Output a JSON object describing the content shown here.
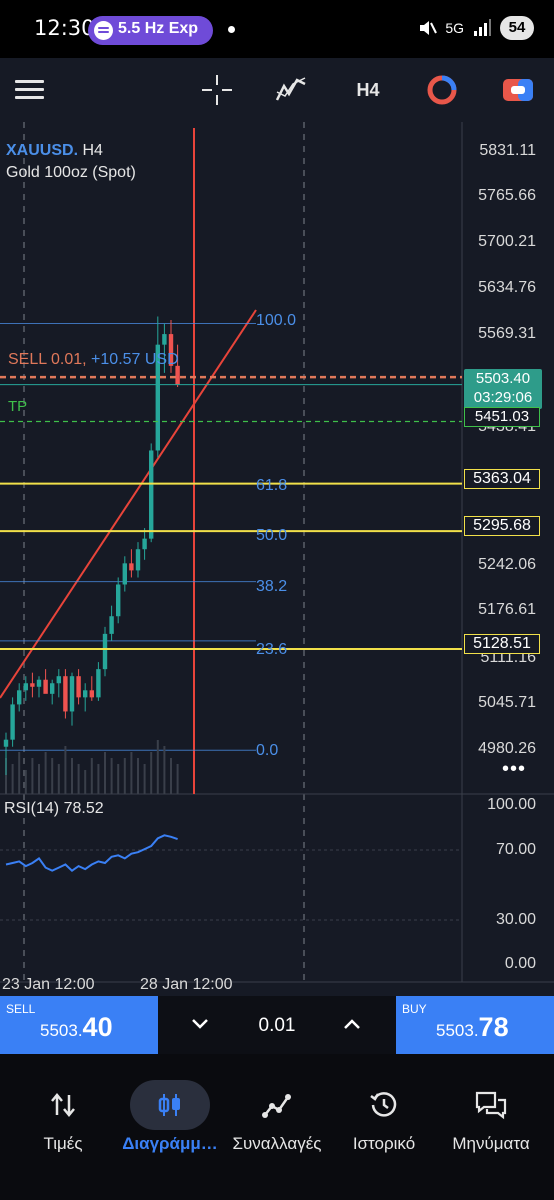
{
  "status_bar": {
    "time": "12:30",
    "media_pill": "5.5 Hz Exp",
    "network": "5G",
    "battery": "54"
  },
  "toolbar": {
    "timeframe": "H4",
    "icons": [
      "menu-icon",
      "crosshair-icon",
      "indicators-icon",
      "timeframe",
      "object-icon",
      "trade-icon"
    ]
  },
  "chart": {
    "symbol": "XAUUSD.",
    "timeframe": "H4",
    "description": "Gold 100oz (Spot)",
    "price_axis": [
      "5831.11",
      "5765.66",
      "5700.21",
      "5634.76",
      "5569.31",
      "5438.41",
      "5176.61",
      "5111.16",
      "5045.71",
      "4980.26",
      "5242.06"
    ],
    "position": {
      "side": "SELL",
      "volume": "0.01,",
      "pnl": "+10.57 USD"
    },
    "tp_label": "TP",
    "fib_levels": [
      "100.0",
      "61.8",
      "50.0",
      "38.2",
      "23.6",
      "0.0"
    ],
    "tags": {
      "level1": "5363.04",
      "level2": "5295.68",
      "level3": "5128.51",
      "current_price": "5503.40",
      "countdown": "03:29:06",
      "tp_price": "5451.03"
    },
    "rsi": {
      "label": "RSI(14) 78.52",
      "axis": [
        "100.00",
        "70.00",
        "30.00",
        "0.00"
      ]
    },
    "dates": [
      "23 Jan 12:00",
      "28 Jan 12:00"
    ],
    "colors": {
      "bull": "#26a69a",
      "bear": "#ef5350",
      "fib": "#4b8fe8",
      "level": "#f1e04a",
      "sell_line": "#e0785a",
      "trend": "#e8443a"
    }
  },
  "chart_data": {
    "type": "candlestick",
    "title": "XAUUSD. H4",
    "ylim": [
      4940,
      5870
    ],
    "candles": [
      {
        "o": 4990,
        "h": 5010,
        "l": 4950,
        "c": 5000
      },
      {
        "o": 5000,
        "h": 5060,
        "l": 4990,
        "c": 5050
      },
      {
        "o": 5050,
        "h": 5080,
        "l": 5040,
        "c": 5070
      },
      {
        "o": 5070,
        "h": 5090,
        "l": 5055,
        "c": 5080
      },
      {
        "o": 5080,
        "h": 5095,
        "l": 5060,
        "c": 5075
      },
      {
        "o": 5075,
        "h": 5090,
        "l": 5060,
        "c": 5085
      },
      {
        "o": 5085,
        "h": 5100,
        "l": 5070,
        "c": 5065
      },
      {
        "o": 5065,
        "h": 5085,
        "l": 5050,
        "c": 5080
      },
      {
        "o": 5080,
        "h": 5100,
        "l": 5060,
        "c": 5090
      },
      {
        "o": 5090,
        "h": 5100,
        "l": 5030,
        "c": 5040
      },
      {
        "o": 5040,
        "h": 5095,
        "l": 5020,
        "c": 5090
      },
      {
        "o": 5090,
        "h": 5100,
        "l": 5050,
        "c": 5060
      },
      {
        "o": 5060,
        "h": 5080,
        "l": 5040,
        "c": 5070
      },
      {
        "o": 5070,
        "h": 5090,
        "l": 5055,
        "c": 5060
      },
      {
        "o": 5060,
        "h": 5110,
        "l": 5055,
        "c": 5100
      },
      {
        "o": 5100,
        "h": 5160,
        "l": 5090,
        "c": 5150
      },
      {
        "o": 5150,
        "h": 5190,
        "l": 5140,
        "c": 5175
      },
      {
        "o": 5175,
        "h": 5230,
        "l": 5165,
        "c": 5220
      },
      {
        "o": 5220,
        "h": 5260,
        "l": 5210,
        "c": 5250
      },
      {
        "o": 5250,
        "h": 5270,
        "l": 5230,
        "c": 5240
      },
      {
        "o": 5240,
        "h": 5280,
        "l": 5230,
        "c": 5270
      },
      {
        "o": 5270,
        "h": 5300,
        "l": 5255,
        "c": 5285
      },
      {
        "o": 5285,
        "h": 5420,
        "l": 5280,
        "c": 5410
      },
      {
        "o": 5410,
        "h": 5600,
        "l": 5400,
        "c": 5560
      },
      {
        "o": 5560,
        "h": 5590,
        "l": 5520,
        "c": 5575
      },
      {
        "o": 5575,
        "h": 5595,
        "l": 5520,
        "c": 5530
      },
      {
        "o": 5530,
        "h": 5560,
        "l": 5500,
        "c": 5503.4
      }
    ],
    "volume": [
      6,
      5,
      7,
      4,
      6,
      5,
      7,
      6,
      5,
      8,
      6,
      5,
      4,
      6,
      5,
      7,
      6,
      5,
      6,
      7,
      6,
      5,
      7,
      9,
      8,
      6,
      5
    ],
    "rsi": [
      62,
      63,
      64,
      61,
      63,
      66,
      60,
      58,
      60,
      62,
      58,
      61,
      59,
      62,
      64,
      63,
      67,
      68,
      66,
      69,
      70,
      72,
      74,
      79,
      81,
      80,
      78.52
    ],
    "fib": {
      "100.0": 5590,
      "61.8": 5363.04,
      "50.0": 5295.68,
      "38.2": 5224,
      "23.6": 5140,
      "0.0": 4985
    },
    "levels": [
      5363.04,
      5295.68,
      5128.51
    ],
    "sell_entry": 5514,
    "current_price": 5503.4,
    "take_profit": 5451.03
  },
  "trade": {
    "sell_tag": "SELL",
    "sell_price_small": "5503.",
    "sell_price_large": "40",
    "volume": "0.01",
    "buy_tag": "BUY",
    "buy_price_small": "5503.",
    "buy_price_large": "78"
  },
  "nav": [
    {
      "label": "Τιμές",
      "icon": "quotes-icon"
    },
    {
      "label": "Διαγράμμ…",
      "icon": "chart-icon"
    },
    {
      "label": "Συναλλαγές",
      "icon": "trade-icon"
    },
    {
      "label": "Ιστορικό",
      "icon": "history-icon"
    },
    {
      "label": "Μηνύματα",
      "icon": "messages-icon"
    }
  ]
}
